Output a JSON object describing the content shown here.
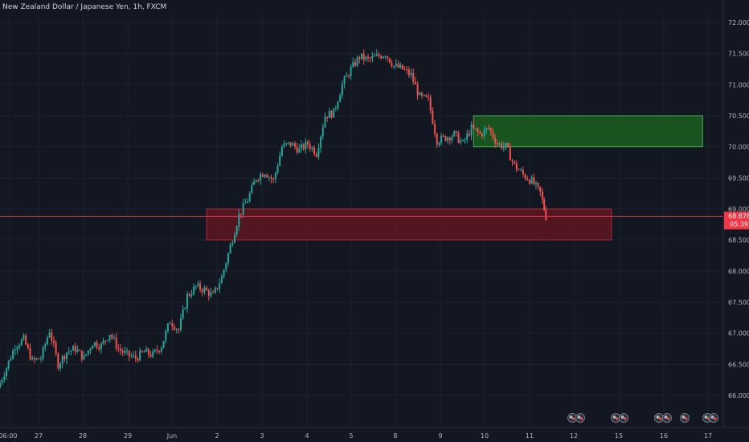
{
  "header": {
    "title": "New Zealand Dollar / Japanese Yen, 1h, FXCM"
  },
  "colors": {
    "background": "#131722",
    "grid": "#1e222d",
    "up": "#26a69a",
    "down": "#ef5350",
    "price_line": "#f23645",
    "price_badge": "#f23645",
    "resistance_zone_fill": "#1b5e20",
    "resistance_zone_border": "#4caf50",
    "support_zone_fill": "#5d1620",
    "support_zone_border": "#b2283a"
  },
  "chart_data": {
    "type": "candlestick",
    "y_axis": {
      "ticks": [
        "66.000",
        "66.500",
        "67.000",
        "67.500",
        "68.000",
        "68.500",
        "69.000",
        "69.500",
        "70.000",
        "70.500",
        "71.000",
        "71.500",
        "72.000"
      ],
      "range": [
        65.6,
        72.1
      ]
    },
    "x_axis": {
      "ticks": [
        "06:00",
        "27",
        "28",
        "29",
        "Jun",
        "2",
        "3",
        "4",
        "5",
        "8",
        "9",
        "10",
        "11",
        "12",
        "15",
        "16",
        "17"
      ],
      "range": [
        0,
        42
      ]
    },
    "series": [
      {
        "x": 0.0,
        "y": 66.12
      },
      {
        "x": 0.5,
        "y": 66.45
      },
      {
        "x": 1.0,
        "y": 66.8
      },
      {
        "x": 1.5,
        "y": 66.9
      },
      {
        "x": 2.0,
        "y": 66.55
      },
      {
        "x": 2.5,
        "y": 66.6
      },
      {
        "x": 3.0,
        "y": 67.05
      },
      {
        "x": 3.5,
        "y": 66.5
      },
      {
        "x": 4.0,
        "y": 66.7
      },
      {
        "x": 4.5,
        "y": 66.75
      },
      {
        "x": 5.0,
        "y": 66.6
      },
      {
        "x": 5.5,
        "y": 66.85
      },
      {
        "x": 6.0,
        "y": 66.8
      },
      {
        "x": 6.5,
        "y": 67.0
      },
      {
        "x": 7.0,
        "y": 66.75
      },
      {
        "x": 7.5,
        "y": 66.65
      },
      {
        "x": 8.0,
        "y": 66.6
      },
      {
        "x": 8.5,
        "y": 66.7
      },
      {
        "x": 9.0,
        "y": 66.65
      },
      {
        "x": 9.5,
        "y": 66.8
      },
      {
        "x": 10.0,
        "y": 67.2
      },
      {
        "x": 10.5,
        "y": 67.05
      },
      {
        "x": 11.0,
        "y": 67.6
      },
      {
        "x": 11.5,
        "y": 67.75
      },
      {
        "x": 12.0,
        "y": 67.7
      },
      {
        "x": 12.5,
        "y": 67.6
      },
      {
        "x": 13.0,
        "y": 67.9
      },
      {
        "x": 13.5,
        "y": 68.4
      },
      {
        "x": 14.0,
        "y": 68.9
      },
      {
        "x": 14.5,
        "y": 69.15
      },
      {
        "x": 15.0,
        "y": 69.5
      },
      {
        "x": 15.5,
        "y": 69.6
      },
      {
        "x": 16.0,
        "y": 69.45
      },
      {
        "x": 16.5,
        "y": 70.0
      },
      {
        "x": 17.0,
        "y": 70.05
      },
      {
        "x": 17.5,
        "y": 69.95
      },
      {
        "x": 18.0,
        "y": 70.05
      },
      {
        "x": 18.5,
        "y": 69.9
      },
      {
        "x": 19.0,
        "y": 70.5
      },
      {
        "x": 19.5,
        "y": 70.55
      },
      {
        "x": 20.0,
        "y": 71.0
      },
      {
        "x": 20.5,
        "y": 71.25
      },
      {
        "x": 21.0,
        "y": 71.45
      },
      {
        "x": 21.5,
        "y": 71.4
      },
      {
        "x": 22.0,
        "y": 71.45
      },
      {
        "x": 22.5,
        "y": 71.5
      },
      {
        "x": 23.0,
        "y": 71.3
      },
      {
        "x": 23.5,
        "y": 71.25
      },
      {
        "x": 24.0,
        "y": 71.15
      },
      {
        "x": 24.5,
        "y": 70.8
      },
      {
        "x": 25.0,
        "y": 70.75
      },
      {
        "x": 25.5,
        "y": 70.1
      },
      {
        "x": 26.0,
        "y": 70.15
      },
      {
        "x": 26.5,
        "y": 70.2
      },
      {
        "x": 27.0,
        "y": 70.05
      },
      {
        "x": 27.5,
        "y": 70.3
      },
      {
        "x": 28.0,
        "y": 70.2
      },
      {
        "x": 28.5,
        "y": 70.3
      },
      {
        "x": 29.0,
        "y": 70.05
      },
      {
        "x": 29.5,
        "y": 70.0
      },
      {
        "x": 30.0,
        "y": 69.7
      },
      {
        "x": 30.5,
        "y": 69.55
      },
      {
        "x": 31.0,
        "y": 69.45
      },
      {
        "x": 31.5,
        "y": 69.25
      },
      {
        "x": 31.8,
        "y": 68.88
      }
    ],
    "zones": [
      {
        "name": "resistance",
        "x_range": [
          27.5,
          40.8
        ],
        "y_range": [
          70.0,
          70.5
        ]
      },
      {
        "name": "support",
        "x_range": [
          12.0,
          35.5
        ],
        "y_range": [
          68.5,
          69.0
        ]
      }
    ],
    "current_price": {
      "value": "68.878",
      "countdown": "05:39"
    },
    "grid": true
  }
}
